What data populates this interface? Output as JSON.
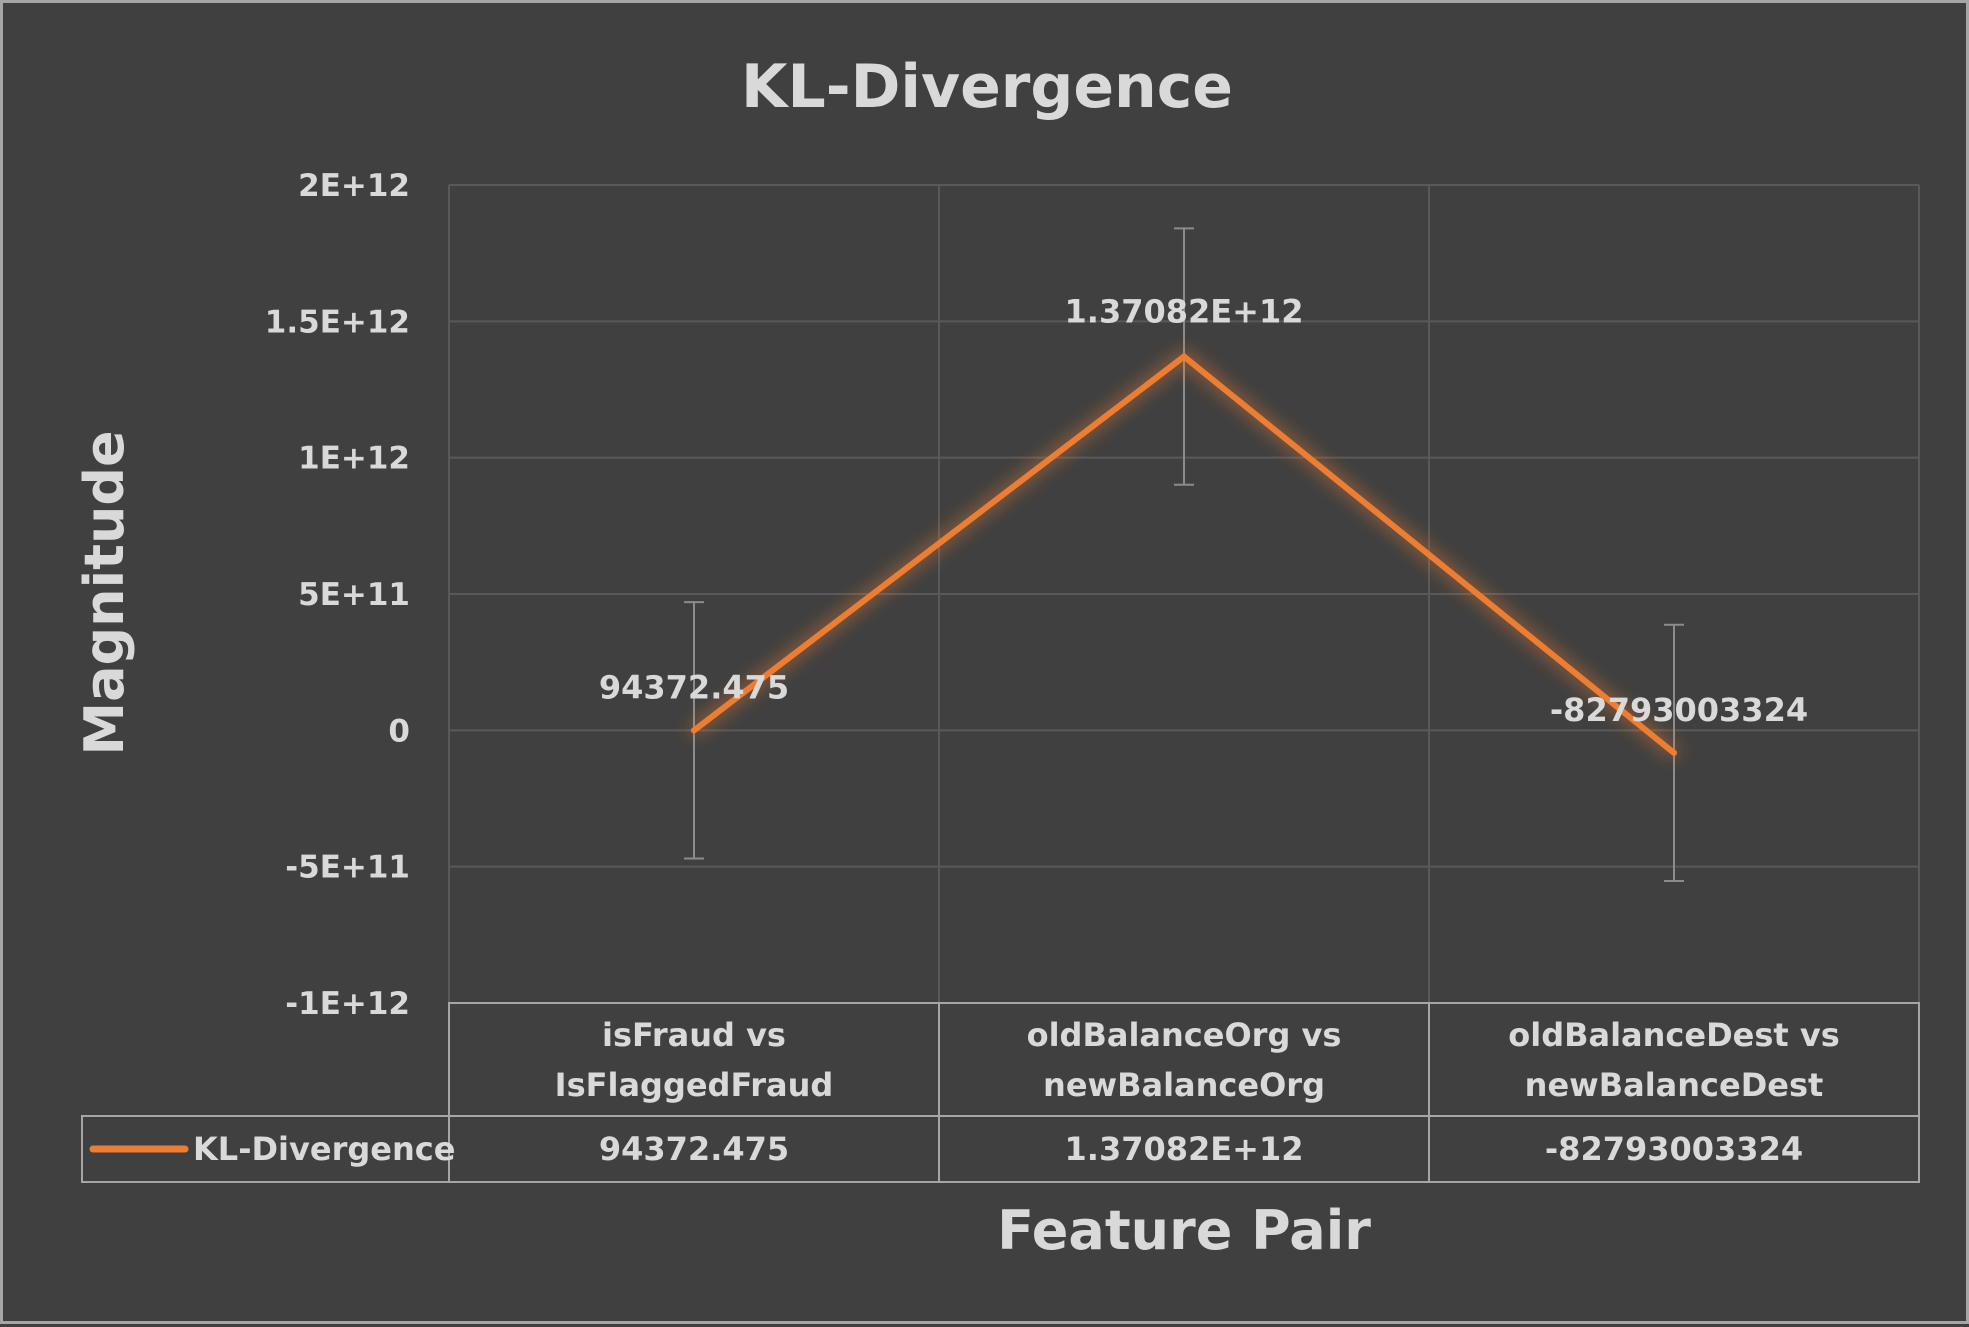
{
  "chart_data": {
    "type": "line",
    "title": "KL-Divergence",
    "xlabel": "Feature Pair",
    "ylabel": "Magnitude",
    "categories": [
      [
        "isFraud vs",
        "IsFlaggedFraud"
      ],
      [
        "oldBalanceOrg vs",
        "newBalanceOrg"
      ],
      [
        "oldBalanceDest vs",
        "newBalanceDest"
      ]
    ],
    "series": [
      {
        "name": "KL-Divergence",
        "values": [
          94372.475,
          1370820000000,
          -82793003324
        ],
        "labels": [
          "94372.475",
          "1.37082E+12",
          "-82793003324"
        ],
        "error": 470000000000,
        "color": "#ed7d31"
      }
    ],
    "ylim": [
      -1000000000000,
      2000000000000
    ],
    "yticks": [
      {
        "value": 2000000000000,
        "label": "2E+12"
      },
      {
        "value": 1500000000000,
        "label": "1.5E+12"
      },
      {
        "value": 1000000000000,
        "label": "1E+12"
      },
      {
        "value": 500000000000,
        "label": "5E+11"
      },
      {
        "value": 0,
        "label": "0"
      },
      {
        "value": -500000000000,
        "label": "-5E+11"
      },
      {
        "value": -1000000000000,
        "label": "-1E+12"
      }
    ],
    "grid": true,
    "data_table": true,
    "background": "#404040",
    "grid_color": "#595959",
    "text_color": "#d9d9d9"
  }
}
